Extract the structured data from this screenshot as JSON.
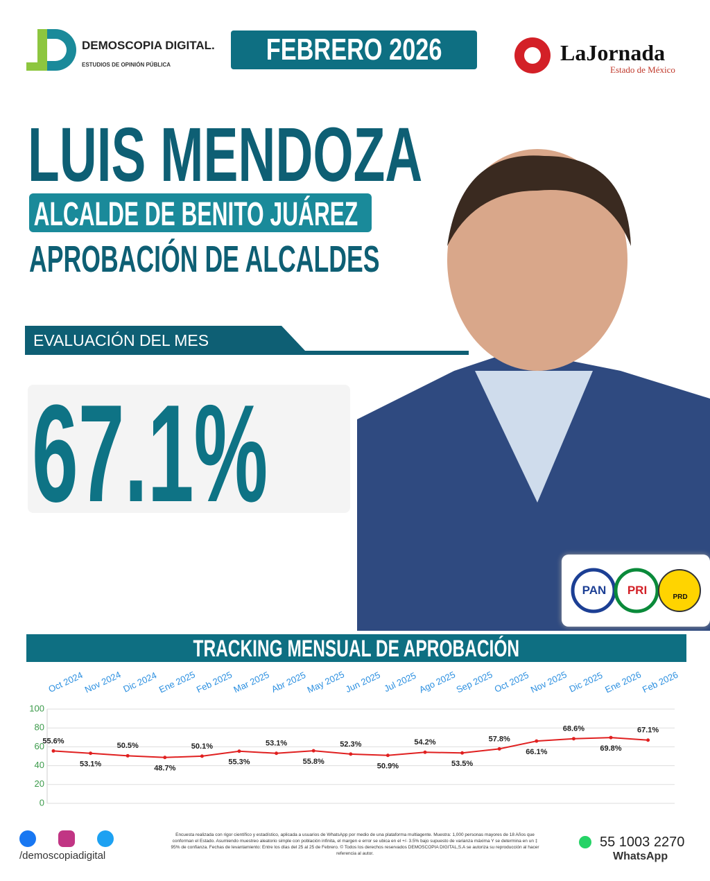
{
  "header": {
    "brand": "DEMOSCOPIA DIGITAL.",
    "brand_sub": "ESTUDIOS DE OPINIÓN PÚBLICA",
    "date": "FEBRERO 2026",
    "partner": "LaJornada",
    "partner_sub": "Estado de México"
  },
  "hero": {
    "name": "LUIS MENDOZA",
    "role": "ALCALDE DE BENITO JUÁREZ",
    "survey": "APROBACIÓN DE ALCALDES",
    "eval_label": "EVALUACIÓN DEL MES",
    "eval_value": "67.1%",
    "parties": [
      "PAN",
      "PRI",
      "PRD"
    ]
  },
  "chart_data": {
    "type": "line",
    "title": "TRACKING MENSUAL DE APROBACIÓN",
    "categories": [
      "Oct 2024",
      "Nov 2024",
      "Dic 2024",
      "Ene 2025",
      "Feb 2025",
      "Mar 2025",
      "Abr 2025",
      "May 2025",
      "Jun 2025",
      "Jul 2025",
      "Ago 2025",
      "Sep 2025",
      "Oct 2025",
      "Nov 2025",
      "Dic 2025",
      "Ene 2026",
      "Feb 2026"
    ],
    "values": [
      55.6,
      53.1,
      50.5,
      48.7,
      50.1,
      55.3,
      53.1,
      55.8,
      52.3,
      50.9,
      54.2,
      53.5,
      57.8,
      66.1,
      68.6,
      69.8,
      67.1
    ],
    "value_labels": [
      "55.6%",
      "53.1%",
      "50.5%",
      "48.7%",
      "50.1%",
      "55.3%",
      "53.1%",
      "55.8%",
      "52.3%",
      "50.9%",
      "54.2%",
      "53.5%",
      "57.8%",
      "66.1%",
      "68.6%",
      "69.8%",
      "67.1%"
    ],
    "color": "#e02020",
    "ylim": [
      0,
      100
    ],
    "yticks": [
      0,
      20,
      40,
      60,
      80,
      100
    ],
    "grid": true
  },
  "footer": {
    "social": "/demoscopiadigital",
    "disclaimer": "Encuesta realizada con rigor científico y estadístico, aplicada a usuarios de WhatsApp por medio de una plataforma multiagente. Muestra: 1,000 personas mayores de 18 Años que conforman el Estado. Asumiendo muestreo aleatorio simple con población infinita, el margen e error se ubica en el +/- 3.5% bajo supuesto de varianza máxima Y se determina en un ‡ 95% de confianza. Fechas de levantamiento: Entre los días del 25 al 25 de Febrero. © Todos los derechos reservados DEMOSCOPIA DIGITAL,S.A se autoriza su reproducción al hacer referencia al autor.",
    "phone": "55 1003 2270",
    "phone_label": "WhatsApp"
  }
}
